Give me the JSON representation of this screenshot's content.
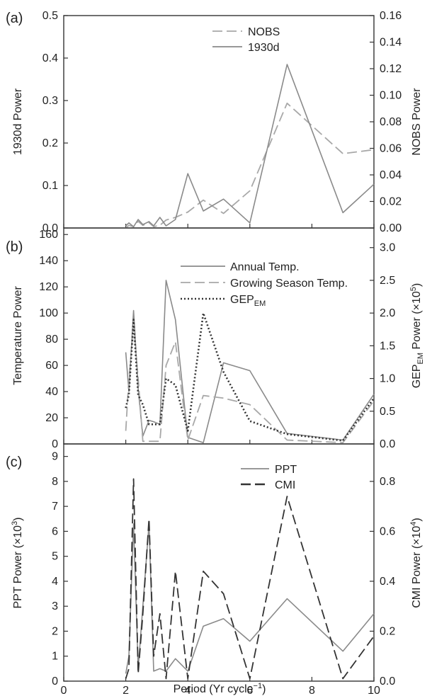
{
  "figure": {
    "xlabel_main": "Period (Yr cycle",
    "xlabel_sup": "−1",
    "xlabel_close": ")"
  },
  "chart_data": [
    {
      "type": "line",
      "panel_label": "(a)",
      "xlim": [
        0,
        10
      ],
      "x_ticks": [
        0,
        2,
        4,
        6,
        8,
        10
      ],
      "x_tick_labels": false,
      "left_axis": {
        "label": "1930d Power",
        "ylim": [
          0,
          0.5
        ],
        "ticks": [
          0.0,
          0.1,
          0.2,
          0.3,
          0.4,
          0.5
        ],
        "tick_labels": [
          "0.0",
          "0.1",
          "0.2",
          "0.3",
          "0.4",
          "0.5"
        ]
      },
      "right_axis": {
        "label": "NOBS Power",
        "ylim": [
          0,
          0.16
        ],
        "ticks": [
          0.0,
          0.02,
          0.04,
          0.06,
          0.08,
          0.1,
          0.12,
          0.14,
          0.16
        ],
        "tick_labels": [
          "0.00",
          "0.02",
          "0.04",
          "0.06",
          "0.08",
          "0.10",
          "0.12",
          "0.14",
          "0.16"
        ]
      },
      "legend": {
        "placement": "top-right"
      },
      "series": [
        {
          "name": "NOBS",
          "axis": "right",
          "style": "longdash",
          "color": "#a8a8a8",
          "x": [
            2.0,
            2.1,
            2.25,
            2.4,
            2.55,
            2.75,
            2.9,
            3.1,
            3.3,
            3.6,
            4.0,
            4.5,
            5.15,
            6.0,
            7.2,
            9.0,
            10.0
          ],
          "y": [
            0.0,
            0.002,
            0.001,
            0.005,
            0.002,
            0.004,
            0.001,
            0.002,
            0.006,
            0.008,
            0.012,
            0.021,
            0.011,
            0.028,
            0.094,
            0.056,
            0.059
          ]
        },
        {
          "name": "1930d",
          "axis": "left",
          "style": "solid",
          "color": "#8a8a8a",
          "x": [
            2.0,
            2.1,
            2.25,
            2.4,
            2.55,
            2.75,
            2.9,
            3.1,
            3.3,
            3.6,
            4.0,
            4.5,
            5.15,
            6.0,
            7.2,
            9.0,
            10.0
          ],
          "y": [
            0.005,
            0.012,
            0.003,
            0.02,
            0.008,
            0.015,
            0.005,
            0.025,
            0.005,
            0.02,
            0.128,
            0.04,
            0.068,
            0.012,
            0.385,
            0.036,
            0.103
          ]
        }
      ]
    },
    {
      "type": "line",
      "panel_label": "(b)",
      "xlim": [
        0,
        10
      ],
      "x_ticks": [
        0,
        2,
        4,
        6,
        8,
        10
      ],
      "x_tick_labels": false,
      "left_axis": {
        "label": "Temperature Power",
        "ylim": [
          0,
          165
        ],
        "ticks": [
          0,
          20,
          40,
          60,
          80,
          100,
          120,
          140,
          160
        ],
        "tick_labels": [
          "0",
          "20",
          "40",
          "60",
          "80",
          "100",
          "120",
          "140",
          "160"
        ]
      },
      "right_axis": {
        "label_main": "GEP",
        "label_sub": "EM",
        "label_rest": " Power (×10",
        "label_sup": "5",
        "label_close": ")",
        "ylim": [
          0,
          3.3
        ],
        "ticks": [
          0.0,
          0.5,
          1.0,
          1.5,
          2.0,
          2.5,
          3.0
        ],
        "tick_labels": [
          "0.0",
          "0.5",
          "1.0",
          "1.5",
          "2.0",
          "2.5",
          "3.0"
        ]
      },
      "legend": {
        "placement": "top-right"
      },
      "series": [
        {
          "name": "Annual Temp.",
          "axis": "left",
          "style": "solid",
          "color": "#8a8a8a",
          "x": [
            2.0,
            2.1,
            2.25,
            2.4,
            2.55,
            2.75,
            2.9,
            3.1,
            3.3,
            3.6,
            4.0,
            4.5,
            5.15,
            6.0,
            7.2,
            9.0,
            10.0
          ],
          "y": [
            70,
            40,
            102,
            42,
            6,
            18,
            17,
            15,
            125,
            95,
            5,
            1,
            62,
            56,
            8,
            3,
            38
          ]
        },
        {
          "name": "Growing Season Temp.",
          "axis": "left",
          "style": "longdash",
          "color": "#a8a8a8",
          "x": [
            2.0,
            2.1,
            2.25,
            2.4,
            2.55,
            2.75,
            2.9,
            3.1,
            3.3,
            3.6,
            4.0,
            4.5,
            5.15,
            6.0,
            7.2,
            9.0,
            10.0
          ],
          "y": [
            10,
            50,
            90,
            50,
            2,
            2,
            2,
            2,
            60,
            78,
            3,
            37,
            35,
            30,
            3,
            1,
            33
          ]
        },
        {
          "name": "GEP",
          "name_sub": "EM",
          "axis": "right",
          "style": "dotted",
          "color": "#333333",
          "x": [
            2.0,
            2.1,
            2.25,
            2.4,
            2.55,
            2.75,
            2.9,
            3.1,
            3.3,
            3.6,
            4.0,
            4.5,
            5.15,
            6.0,
            7.2,
            9.0,
            10.0
          ],
          "y": [
            0.55,
            0.75,
            1.9,
            0.75,
            0.6,
            0.3,
            0.3,
            0.3,
            1.0,
            0.9,
            0.2,
            2.0,
            1.1,
            0.35,
            0.15,
            0.05,
            0.7
          ]
        }
      ]
    },
    {
      "type": "line",
      "panel_label": "(c)",
      "xlim": [
        0,
        10
      ],
      "x_ticks": [
        0,
        2,
        4,
        6,
        8,
        10
      ],
      "x_tick_labels": true,
      "x_tick_text": [
        "0",
        "2",
        "4",
        "6",
        "8",
        "10"
      ],
      "left_axis": {
        "label_main": "PPT Power (×10",
        "label_sup": "3",
        "label_close": ")",
        "ylim": [
          0,
          9.5
        ],
        "ticks": [
          0,
          1,
          2,
          3,
          4,
          5,
          6,
          7,
          8,
          9
        ],
        "tick_labels": [
          "0",
          "1",
          "2",
          "3",
          "4",
          "5",
          "6",
          "7",
          "8",
          "9"
        ]
      },
      "right_axis": {
        "label_main": "CMI Power (×10",
        "label_sup": "4",
        "label_close": ")",
        "ylim": [
          0,
          0.95
        ],
        "ticks": [
          0.0,
          0.2,
          0.4,
          0.6,
          0.8
        ],
        "tick_labels": [
          "0.0",
          "0.2",
          "0.4",
          "0.6",
          "0.8"
        ]
      },
      "legend": {
        "placement": "top-right"
      },
      "series": [
        {
          "name": "PPT",
          "axis": "left",
          "style": "solid",
          "color": "#8a8a8a",
          "x": [
            2.0,
            2.1,
            2.25,
            2.4,
            2.55,
            2.75,
            2.9,
            3.1,
            3.3,
            3.6,
            4.0,
            4.5,
            5.15,
            6.0,
            7.2,
            9.0,
            10.0
          ],
          "y": [
            0.3,
            1.0,
            6.3,
            0.5,
            3.0,
            6.3,
            0.4,
            0.5,
            0.4,
            0.9,
            0.4,
            2.2,
            2.5,
            1.6,
            3.3,
            1.2,
            2.7
          ]
        },
        {
          "name": "CMI",
          "axis": "right",
          "style": "longdash",
          "color": "#333333",
          "x": [
            2.0,
            2.1,
            2.25,
            2.4,
            2.55,
            2.75,
            2.9,
            3.1,
            3.3,
            3.6,
            4.0,
            4.5,
            5.15,
            6.0,
            7.2,
            9.0,
            10.0
          ],
          "y": [
            0.01,
            0.05,
            0.81,
            0.03,
            0.27,
            0.65,
            0.1,
            0.27,
            0.01,
            0.44,
            0.01,
            0.44,
            0.35,
            0.01,
            0.74,
            0.01,
            0.18
          ]
        }
      ]
    }
  ]
}
